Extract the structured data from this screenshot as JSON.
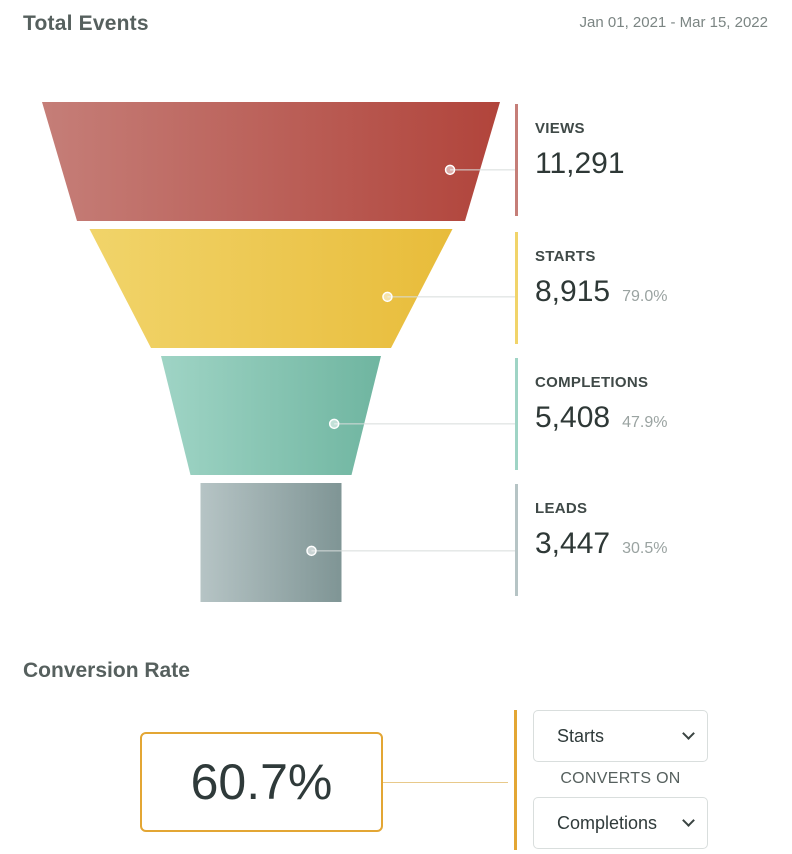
{
  "header": {
    "title": "Total Events",
    "date_range": "Jan 01, 2021 - Mar 15, 2022"
  },
  "chart_data": {
    "type": "funnel",
    "title": "Total Events",
    "stages": [
      {
        "name": "VIEWS",
        "value": 11291,
        "value_label": "11,291",
        "pct_label": "",
        "color_light": "#c57e78",
        "color_dark": "#b1443b"
      },
      {
        "name": "STARTS",
        "value": 8915,
        "value_label": "8,915",
        "pct_label": "79.0%",
        "color_light": "#f1d46a",
        "color_dark": "#e8bc3a"
      },
      {
        "name": "COMPLETIONS",
        "value": 5408,
        "value_label": "5,408",
        "pct_label": "47.9%",
        "color_light": "#9fd4c5",
        "color_dark": "#6fb5a0"
      },
      {
        "name": "LEADS",
        "value": 3447,
        "value_label": "3,447",
        "pct_label": "30.5%",
        "color_light": "#b6c4c5",
        "color_dark": "#7f9595"
      }
    ]
  },
  "conversion": {
    "title": "Conversion Rate",
    "rate": "60.7%",
    "from_select": "Starts",
    "converts_on_label": "CONVERTS ON",
    "to_select": "Completions",
    "accent": "#e3a634"
  }
}
